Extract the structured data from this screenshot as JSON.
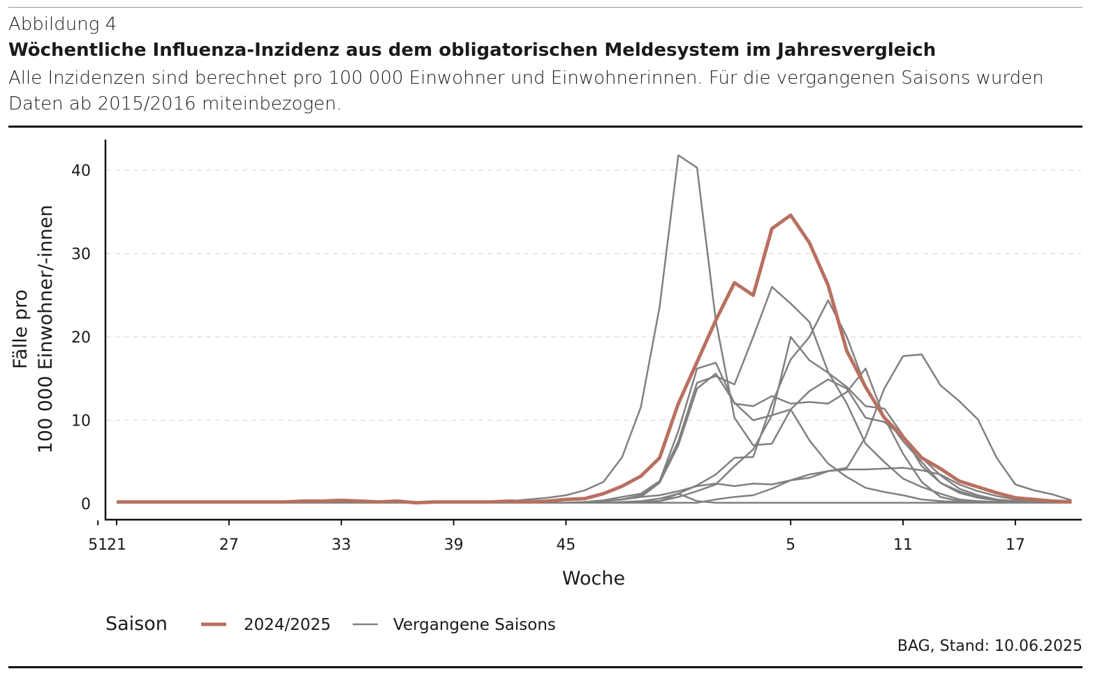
{
  "header": {
    "label": "Abbildung 4",
    "title": "Wöchentliche Influenza-Inzidenz aus dem obligatorischen Meldesystem im Jahresvergleich",
    "subtitle": "Alle Inzidenzen sind berechnet pro 100 000 Einwohner und Einwohnerinnen. Für die vergangenen Saisons wurden Daten ab 2015/2016 miteinbezogen."
  },
  "source": "BAG, Stand: 10.06.2025",
  "chart_data": {
    "type": "line",
    "xlabel": "Woche",
    "ylabel_line1": "Fälle pro",
    "ylabel_line2": "100 000 Einwohner/-innen",
    "x": [
      21,
      22,
      23,
      24,
      25,
      26,
      27,
      28,
      29,
      30,
      31,
      32,
      33,
      34,
      35,
      36,
      37,
      38,
      39,
      40,
      41,
      42,
      43,
      44,
      45,
      46,
      47,
      48,
      49,
      50,
      51,
      52,
      1,
      2,
      3,
      4,
      5,
      6,
      7,
      8,
      9,
      10,
      11,
      12,
      13,
      14,
      15,
      16,
      17,
      18,
      19,
      20
    ],
    "xticks": [
      "21",
      "27",
      "33",
      "39",
      "45",
      "51",
      "5",
      "11",
      "17"
    ],
    "yticks": [
      "0",
      "10",
      "20",
      "30",
      "40"
    ],
    "ylim": [
      0,
      43
    ],
    "grid": "horizontal dashed",
    "legend": {
      "title": "Saison",
      "position": "bottom-left",
      "current": "2024/2025",
      "past": "Vergangene Saisons"
    },
    "colors": {
      "current": "#b87060",
      "past": "#808080"
    },
    "current": {
      "name": "2024/2025",
      "values": [
        0.2,
        0.2,
        0.2,
        0.2,
        0.2,
        0.2,
        0.2,
        0.2,
        0.2,
        0.2,
        0.3,
        0.3,
        0.4,
        0.3,
        0.2,
        0.3,
        0.1,
        0.2,
        0.2,
        0.2,
        0.2,
        0.3,
        0.2,
        0.3,
        0.5,
        0.6,
        1.2,
        2.1,
        3.3,
        5.5,
        12,
        17,
        22,
        26.5,
        25,
        33,
        34.6,
        31.3,
        26.2,
        18.3,
        14,
        10.3,
        8,
        5.5,
        4.2,
        2.7,
        2.0,
        1.3,
        0.7,
        0.5,
        0.3,
        0.2
      ]
    },
    "past": [
      [
        0.1,
        0.1,
        0.1,
        0.1,
        0.1,
        0.1,
        0.1,
        0.1,
        0.1,
        0.1,
        0.1,
        0.1,
        0.1,
        0.1,
        0.1,
        0.1,
        0.1,
        0.1,
        0.1,
        0.1,
        0.2,
        0.3,
        0.5,
        0.7,
        1.0,
        1.6,
        2.6,
        5.6,
        11.6,
        23.6,
        41.8,
        40.3,
        22,
        10.3,
        7,
        7.2,
        11.3,
        7.6,
        4.8,
        3.2,
        1.9,
        1.4,
        1.0,
        0.5,
        0.3,
        0.2,
        0.1,
        0.1,
        0.1,
        0.1,
        0.1,
        0.1
      ],
      [
        0.1,
        0.1,
        0.1,
        0.1,
        0.1,
        0.1,
        0.1,
        0.1,
        0.1,
        0.1,
        0.1,
        0.1,
        0.1,
        0.1,
        0.1,
        0.1,
        0.1,
        0.1,
        0.1,
        0.1,
        0.1,
        0.1,
        0.1,
        0.1,
        0.1,
        0.2,
        0.4,
        0.8,
        1.2,
        2.7,
        7.5,
        14.5,
        15.3,
        14.3,
        20,
        26,
        24,
        21.8,
        15.8,
        12,
        7.2,
        5,
        3,
        2,
        1.2,
        0.5,
        0.3,
        0.2,
        0.1,
        0.1,
        0.1,
        0.1
      ],
      [
        0.1,
        0.1,
        0.1,
        0.1,
        0.1,
        0.1,
        0.1,
        0.1,
        0.1,
        0.1,
        0.1,
        0.1,
        0.1,
        0.1,
        0.1,
        0.1,
        0.1,
        0.1,
        0.1,
        0.1,
        0.1,
        0.1,
        0.1,
        0.1,
        0.1,
        0.1,
        0.1,
        0.2,
        0.3,
        0.6,
        1.2,
        2.2,
        3.5,
        5.5,
        5.6,
        12,
        17.3,
        20,
        24.4,
        20,
        14,
        10.5,
        7.5,
        5,
        2.5,
        1.5,
        0.8,
        0.4,
        0.2,
        0.1,
        0.1,
        0.1
      ],
      [
        0.1,
        0.1,
        0.1,
        0.1,
        0.1,
        0.1,
        0.1,
        0.1,
        0.1,
        0.1,
        0.1,
        0.1,
        0.1,
        0.1,
        0.1,
        0.1,
        0.1,
        0.1,
        0.1,
        0.1,
        0.1,
        0.1,
        0.1,
        0.1,
        0.1,
        0.1,
        0.1,
        0.1,
        0.2,
        0.3,
        0.8,
        1.5,
        2.3,
        4.5,
        6.5,
        10.6,
        20,
        17.2,
        15.7,
        14,
        11.7,
        11.4,
        8.2,
        4.5,
        2.5,
        1.3,
        0.7,
        0.4,
        0.2,
        0.1,
        0.1,
        0.1
      ],
      [
        0.1,
        0.1,
        0.1,
        0.1,
        0.1,
        0.1,
        0.1,
        0.1,
        0.1,
        0.1,
        0.1,
        0.1,
        0.1,
        0.1,
        0.1,
        0.1,
        0.1,
        0.1,
        0.1,
        0.1,
        0.1,
        0.1,
        0.1,
        0.1,
        0.1,
        0.1,
        0.1,
        0.1,
        0.1,
        0.1,
        0.1,
        0.1,
        0.5,
        0.8,
        1.0,
        1.8,
        2.8,
        3.1,
        3.9,
        4.3,
        8,
        13.8,
        17.7,
        17.9,
        14.2,
        12.3,
        10.1,
        5.5,
        2.3,
        1.6,
        1.1,
        0.4
      ],
      [
        0.1,
        0.1,
        0.1,
        0.1,
        0.1,
        0.1,
        0.1,
        0.1,
        0.1,
        0.1,
        0.1,
        0.1,
        0.1,
        0.1,
        0.1,
        0.1,
        0.1,
        0.1,
        0.1,
        0.1,
        0.1,
        0.1,
        0.1,
        0.1,
        0.1,
        0.2,
        0.3,
        0.5,
        1.0,
        2.7,
        8.7,
        16.2,
        16.9,
        12,
        11.7,
        12.9,
        12,
        12.2,
        12,
        13.4,
        16.2,
        10.3,
        6,
        2.6,
        0.8,
        0.3,
        0.2,
        0.1,
        0.1,
        0.1,
        0.1,
        0.1
      ],
      [
        0.1,
        0.1,
        0.1,
        0.1,
        0.1,
        0.1,
        0.1,
        0.1,
        0.1,
        0.1,
        0.1,
        0.1,
        0.1,
        0.1,
        0.1,
        0.1,
        0.1,
        0.1,
        0.1,
        0.1,
        0.1,
        0.1,
        0.1,
        0.1,
        0.1,
        0.2,
        0.3,
        0.5,
        0.8,
        2.5,
        7,
        13.8,
        15.6,
        12.1,
        10,
        10.6,
        11.3,
        13.5,
        14.9,
        13.8,
        10.3,
        9.8,
        8,
        5.5,
        3.4,
        1.8,
        1.0,
        0.5,
        0.3,
        0.2,
        0.1,
        0.1
      ],
      [
        0.1,
        0.1,
        0.1,
        0.1,
        0.1,
        0.1,
        0.1,
        0.1,
        0.1,
        0.1,
        0.1,
        0.1,
        0.1,
        0.1,
        0.1,
        0.1,
        0.1,
        0.1,
        0.1,
        0.1,
        0.1,
        0.1,
        0.1,
        0.1,
        0.1,
        0.2,
        0.3,
        0.5,
        0.8,
        1,
        1.5,
        2.1,
        2.4,
        2.1,
        2.4,
        2.3,
        2.8,
        3.5,
        3.9,
        4.1,
        4.1,
        4.2,
        4.3,
        4.0,
        3.5,
        2.3,
        1.5,
        0.9,
        0.5,
        0.3,
        0.2,
        0.1
      ],
      [
        0.1,
        0.1,
        0.1,
        0.1,
        0.1,
        0.1,
        0.1,
        0.1,
        0.1,
        0.1,
        0.1,
        0.1,
        0.1,
        0.1,
        0.1,
        0.1,
        0.1,
        0.1,
        0.1,
        0.1,
        0.1,
        0.1,
        0.1,
        0.1,
        0.1,
        0.1,
        0.1,
        0.1,
        0.2,
        0.3,
        1.2,
        0.3,
        0.1,
        0.1,
        0.1,
        0.1,
        0.1,
        0.1,
        0.1,
        0.1,
        0.1,
        0.1,
        0.1,
        0.1,
        0.1,
        0.1,
        0.1,
        0.1,
        0.1,
        0.1,
        0.1,
        0.1
      ]
    ]
  }
}
